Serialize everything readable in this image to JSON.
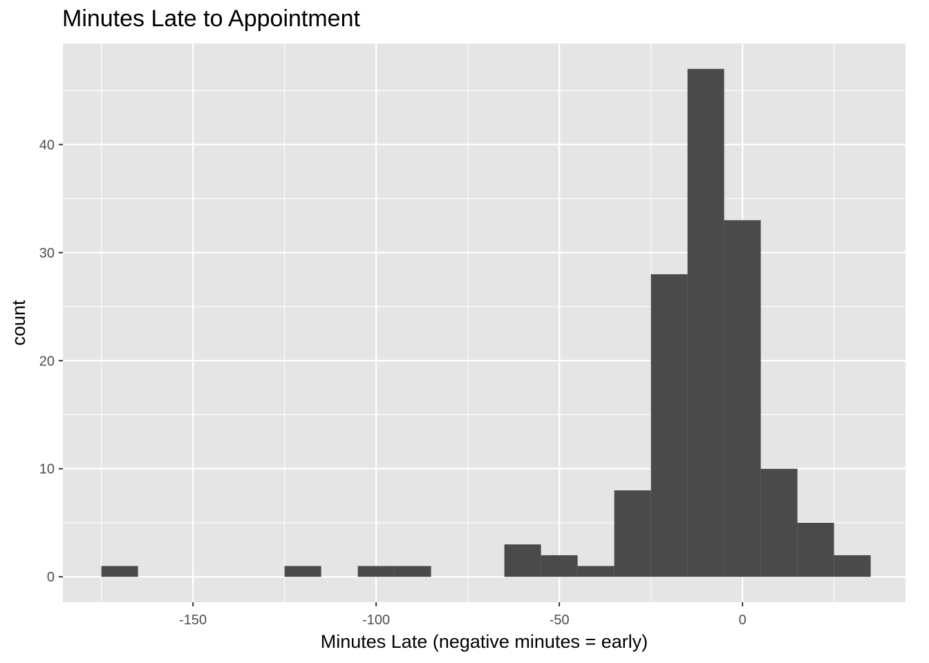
{
  "chart_data": {
    "type": "bar",
    "title": "Minutes Late to Appointment",
    "xlabel": "Minutes Late (negative minutes = early)",
    "ylabel": "count",
    "xlim": [
      -185.5,
      44.5
    ],
    "ylim": [
      -2.35,
      49.35
    ],
    "x_ticks": [
      -150,
      -100,
      -50,
      0
    ],
    "x_tick_labels": [
      "-150",
      "-100",
      "-50",
      "0"
    ],
    "y_ticks": [
      0,
      10,
      20,
      30,
      40
    ],
    "y_tick_labels": [
      "0",
      "10",
      "20",
      "30",
      "40"
    ],
    "bin_width": 10,
    "bins": [
      {
        "x": -170,
        "count": 1
      },
      {
        "x": -120,
        "count": 1
      },
      {
        "x": -100,
        "count": 1
      },
      {
        "x": -90,
        "count": 1
      },
      {
        "x": -60,
        "count": 3
      },
      {
        "x": -50,
        "count": 2
      },
      {
        "x": -40,
        "count": 1
      },
      {
        "x": -30,
        "count": 8
      },
      {
        "x": -20,
        "count": 28
      },
      {
        "x": -10,
        "count": 47
      },
      {
        "x": 0,
        "count": 33
      },
      {
        "x": 10,
        "count": 10
      },
      {
        "x": 20,
        "count": 5
      },
      {
        "x": 30,
        "count": 2
      }
    ],
    "grid": true,
    "colors": {
      "panel_background": "#e5e5e5",
      "grid_line": "#ffffff",
      "bar_fill": "#4a4a4a",
      "tick_text": "#4d4d4d",
      "tick_mark": "#333333"
    }
  }
}
